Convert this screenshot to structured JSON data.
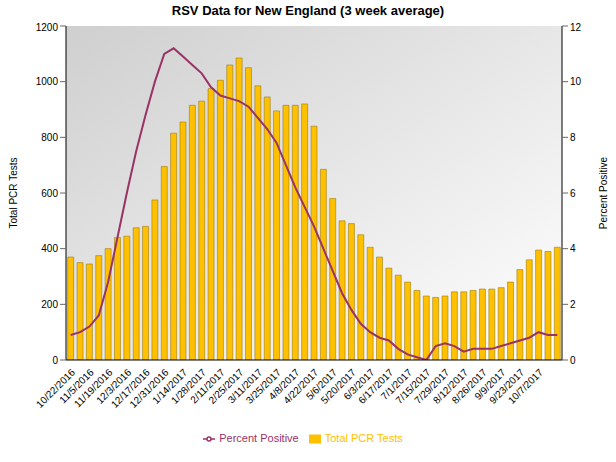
{
  "chart_data": {
    "type": "bar",
    "title": "RSV Data for New England (3 week average)",
    "categories": [
      "10/22/2016",
      null,
      "11/5/2016",
      null,
      "11/19/2016",
      null,
      "12/3/2016",
      null,
      "12/17/2016",
      null,
      "12/31/2016",
      null,
      "1/14/2017",
      null,
      "1/28/2017",
      null,
      "2/11/2017",
      null,
      "2/25/2017",
      null,
      "3/11/2017",
      null,
      "3/25/2017",
      null,
      "4/8/2017",
      null,
      "4/22/2017",
      null,
      "5/6/2017",
      null,
      "5/20/2017",
      null,
      "6/3/2017",
      null,
      "6/17/2017",
      null,
      "7/1/2017",
      null,
      "7/15/2017",
      null,
      "7/29/2017",
      null,
      "8/12/2017",
      null,
      "8/26/2017",
      null,
      "9/9/2017",
      null,
      "9/23/2017",
      null,
      "10/7/2017",
      null,
      null
    ],
    "series": [
      {
        "name": "Total PCR Tests",
        "type": "bar",
        "color": "#FFC000",
        "values": [
          370,
          350,
          345,
          375,
          400,
          440,
          445,
          475,
          480,
          575,
          695,
          815,
          855,
          915,
          930,
          975,
          1005,
          1060,
          1085,
          1050,
          985,
          945,
          895,
          915,
          915,
          920,
          840,
          685,
          580,
          500,
          490,
          450,
          405,
          370,
          330,
          305,
          280,
          250,
          230,
          225,
          230,
          245,
          245,
          250,
          255,
          255,
          260,
          280,
          325,
          360,
          395,
          390,
          405
        ]
      },
      {
        "name": "Percent Positive",
        "type": "line",
        "color": "#993366",
        "axis": "y2",
        "values": [
          0.9,
          1.0,
          1.2,
          1.6,
          2.8,
          4.4,
          6.0,
          7.5,
          8.8,
          10.0,
          11.0,
          11.2,
          10.9,
          10.6,
          10.3,
          9.8,
          9.5,
          9.4,
          9.3,
          9.1,
          8.7,
          8.3,
          7.8,
          7.0,
          6.2,
          5.5,
          4.8,
          4.0,
          3.2,
          2.4,
          1.8,
          1.3,
          1.0,
          0.8,
          0.7,
          0.4,
          0.2,
          0.1,
          0.0,
          0.5,
          0.6,
          0.5,
          0.3,
          0.4,
          0.4,
          0.4,
          0.5,
          0.6,
          0.7,
          0.8,
          1.0,
          0.9,
          0.9
        ]
      }
    ],
    "ylabel": "Total PCR Tests",
    "y2label": "Percent Positive",
    "ylim": [
      0,
      1200
    ],
    "yticks": [
      0,
      200,
      400,
      600,
      800,
      1000,
      1200
    ],
    "y2lim": [
      0,
      12
    ],
    "y2ticks": [
      0,
      2,
      4,
      6,
      8,
      10,
      12
    ],
    "legend": "bottom",
    "grid": false
  }
}
